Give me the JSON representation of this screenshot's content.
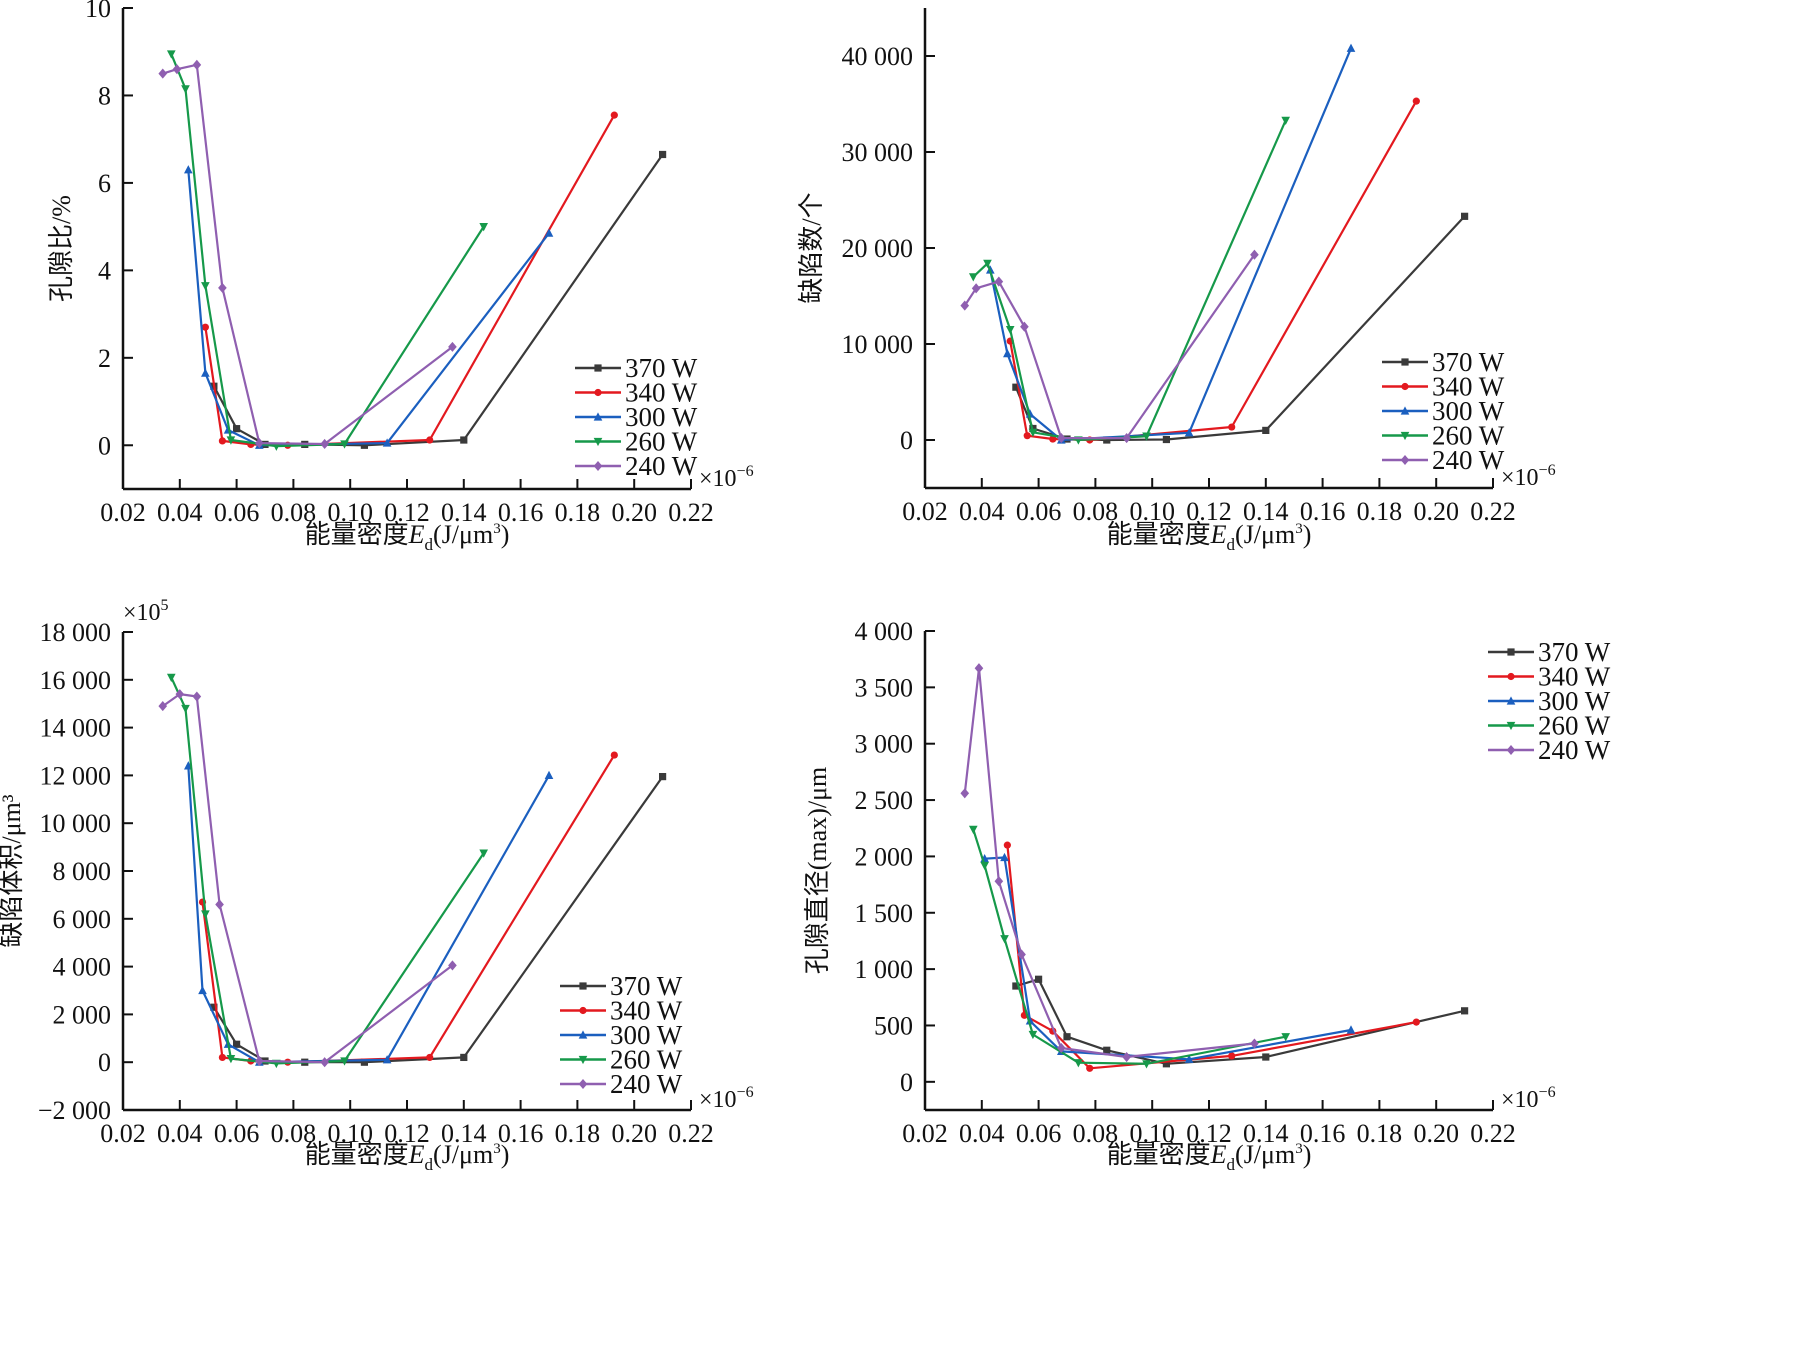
{
  "figure": {
    "series_styles": [
      {
        "name": "370 W",
        "color": "#3a3a3a",
        "marker": "square"
      },
      {
        "name": "340 W",
        "color": "#e3191f",
        "marker": "circle"
      },
      {
        "name": "300 W",
        "color": "#1b5fbf",
        "marker": "triangle-up"
      },
      {
        "name": "260 W",
        "color": "#16994a",
        "marker": "triangle-down"
      },
      {
        "name": "240 W",
        "color": "#8f5fb0",
        "marker": "diamond"
      }
    ]
  },
  "chart_data": [
    {
      "id": "void-ratio",
      "type": "line",
      "title": "",
      "xlabel": "能量密度E_d(J/μm³)",
      "xlabel_parts": {
        "main": "能量密度",
        "var": "E",
        "sub": "d",
        "unit": "(J/μm",
        "sup": "3",
        "close": ")"
      },
      "ylabel": "孔隙比/%",
      "x_multiplier": "×10⁻⁶",
      "x_multiplier_parts": {
        "base": "×10",
        "exp": "−6"
      },
      "y_multiplier": "",
      "xlim": [
        0.02,
        0.22
      ],
      "ylim": [
        -1,
        10
      ],
      "xticks": [
        0.02,
        0.04,
        0.06,
        0.08,
        0.1,
        0.12,
        0.14,
        0.16,
        0.18,
        0.2,
        0.22
      ],
      "xtick_labels": [
        "0.02",
        "0.04",
        "0.06",
        "0.08",
        "0.10",
        "0.12",
        "0.14",
        "0.16",
        "0.18",
        "0.20",
        "0.22"
      ],
      "yticks": [
        0,
        2,
        4,
        6,
        8,
        10
      ],
      "ytick_labels": [
        "0",
        "2",
        "4",
        "6",
        "8",
        "10"
      ],
      "grid": false,
      "legend_position": "bottom-right",
      "series": [
        {
          "name": "370 W",
          "x": [
            0.052,
            0.06,
            0.07,
            0.084,
            0.105,
            0.14,
            0.21
          ],
          "y": [
            1.35,
            0.38,
            0.02,
            0.02,
            0.0,
            0.12,
            6.65
          ]
        },
        {
          "name": "340 W",
          "x": [
            0.049,
            0.055,
            0.065,
            0.078,
            0.128,
            0.193
          ],
          "y": [
            2.7,
            0.1,
            0.02,
            0.0,
            0.12,
            7.55
          ]
        },
        {
          "name": "300 W",
          "x": [
            0.043,
            0.049,
            0.057,
            0.068,
            0.113,
            0.17
          ],
          "y": [
            6.3,
            1.65,
            0.35,
            0.0,
            0.05,
            4.85
          ]
        },
        {
          "name": "260 W",
          "x": [
            0.037,
            0.042,
            0.049,
            0.058,
            0.074,
            0.098,
            0.147
          ],
          "y": [
            8.95,
            8.15,
            3.65,
            0.12,
            -0.02,
            0.03,
            5.0
          ]
        },
        {
          "name": "240 W",
          "x": [
            0.034,
            0.039,
            0.046,
            0.055,
            0.068,
            0.091,
            0.136
          ],
          "y": [
            8.5,
            8.6,
            8.7,
            3.6,
            0.05,
            0.03,
            2.25
          ]
        }
      ]
    },
    {
      "id": "defect-count",
      "type": "line",
      "title": "",
      "xlabel": "能量密度E_d(J/μm³)",
      "xlabel_parts": {
        "main": "能量密度",
        "var": "E",
        "sub": "d",
        "unit": "(J/μm",
        "sup": "3",
        "close": ")"
      },
      "ylabel": "缺陷数/个",
      "x_multiplier": "×10⁻⁶",
      "x_multiplier_parts": {
        "base": "×10",
        "exp": "−6"
      },
      "y_multiplier": "",
      "xlim": [
        0.02,
        0.22
      ],
      "ylim": [
        -5000,
        45000
      ],
      "xticks": [
        0.02,
        0.04,
        0.06,
        0.08,
        0.1,
        0.12,
        0.14,
        0.16,
        0.18,
        0.2,
        0.22
      ],
      "xtick_labels": [
        "0.02",
        "0.04",
        "0.06",
        "0.08",
        "0.10",
        "0.12",
        "0.14",
        "0.16",
        "0.18",
        "0.20",
        "0.22"
      ],
      "yticks": [
        0,
        10000,
        20000,
        30000,
        40000
      ],
      "ytick_labels": [
        "0",
        "10 000",
        "20 000",
        "30 000",
        "40 000"
      ],
      "grid": false,
      "legend_position": "bottom-right",
      "series": [
        {
          "name": "370 W",
          "x": [
            0.052,
            0.058,
            0.07,
            0.084,
            0.105,
            0.14,
            0.21
          ],
          "y": [
            5500,
            1200,
            100,
            0,
            50,
            1000,
            23300
          ]
        },
        {
          "name": "340 W",
          "x": [
            0.05,
            0.056,
            0.065,
            0.078,
            0.128,
            0.193
          ],
          "y": [
            10300,
            450,
            100,
            0,
            1350,
            35300
          ]
        },
        {
          "name": "300 W",
          "x": [
            0.043,
            0.049,
            0.057,
            0.068,
            0.113,
            0.17
          ],
          "y": [
            17700,
            9000,
            2700,
            0,
            750,
            40800
          ]
        },
        {
          "name": "260 W",
          "x": [
            0.037,
            0.042,
            0.05,
            0.058,
            0.074,
            0.098,
            0.147
          ],
          "y": [
            17000,
            18400,
            11500,
            800,
            0,
            400,
            33300
          ]
        },
        {
          "name": "240 W",
          "x": [
            0.034,
            0.038,
            0.046,
            0.055,
            0.068,
            0.091,
            0.136
          ],
          "y": [
            14000,
            15800,
            16500,
            11800,
            200,
            200,
            19300
          ]
        }
      ]
    },
    {
      "id": "defect-volume",
      "type": "line",
      "title": "",
      "xlabel": "能量密度E_d(J/μm³)",
      "xlabel_parts": {
        "main": "能量密度",
        "var": "E",
        "sub": "d",
        "unit": "(J/μm",
        "sup": "3",
        "close": ")"
      },
      "ylabel": "缺陷体积/μm³",
      "x_multiplier": "×10⁻⁶",
      "x_multiplier_parts": {
        "base": "×10",
        "exp": "−6"
      },
      "y_multiplier": "×10⁵",
      "y_multiplier_parts": {
        "base": "×10",
        "exp": "5"
      },
      "xlim": [
        0.02,
        0.22
      ],
      "ylim": [
        -2000,
        18000
      ],
      "xticks": [
        0.02,
        0.04,
        0.06,
        0.08,
        0.1,
        0.12,
        0.14,
        0.16,
        0.18,
        0.2,
        0.22
      ],
      "xtick_labels": [
        "0.02",
        "0.04",
        "0.06",
        "0.08",
        "0.10",
        "0.12",
        "0.14",
        "0.16",
        "0.18",
        "0.20",
        "0.22"
      ],
      "yticks": [
        -2000,
        0,
        2000,
        4000,
        6000,
        8000,
        10000,
        12000,
        14000,
        16000,
        18000
      ],
      "ytick_labels": [
        "−2 000",
        "0",
        "2 000",
        "4 000",
        "6 000",
        "8 000",
        "10 000",
        "12 000",
        "14 000",
        "16 000",
        "18 000"
      ],
      "grid": false,
      "legend_position": "bottom-right",
      "series": [
        {
          "name": "370 W",
          "x": [
            0.052,
            0.06,
            0.07,
            0.084,
            0.105,
            0.14,
            0.21
          ],
          "y": [
            2300,
            750,
            50,
            0,
            0,
            200,
            11950
          ]
        },
        {
          "name": "340 W",
          "x": [
            0.048,
            0.055,
            0.065,
            0.078,
            0.128,
            0.193
          ],
          "y": [
            6700,
            200,
            50,
            0,
            200,
            12850
          ]
        },
        {
          "name": "300 W",
          "x": [
            0.043,
            0.048,
            0.057,
            0.068,
            0.113,
            0.17
          ],
          "y": [
            12400,
            3000,
            750,
            0,
            100,
            12000
          ]
        },
        {
          "name": "260 W",
          "x": [
            0.037,
            0.042,
            0.049,
            0.058,
            0.074,
            0.098,
            0.147
          ],
          "y": [
            16100,
            14800,
            6200,
            150,
            -50,
            50,
            8750
          ]
        },
        {
          "name": "240 W",
          "x": [
            0.034,
            0.04,
            0.046,
            0.054,
            0.068,
            0.091,
            0.136
          ],
          "y": [
            14900,
            15400,
            15300,
            6600,
            50,
            0,
            4050
          ]
        }
      ]
    },
    {
      "id": "max-pore-diameter",
      "type": "line",
      "title": "",
      "xlabel": "能量密度E_d(J/μm³)",
      "xlabel_parts": {
        "main": "能量密度",
        "var": "E",
        "sub": "d",
        "unit": "(J/μm",
        "sup": "3",
        "close": ")"
      },
      "ylabel": "孔隙直径(max)/μm",
      "x_multiplier": "×10⁻⁶",
      "x_multiplier_parts": {
        "base": "×10",
        "exp": "−6"
      },
      "y_multiplier": "",
      "xlim": [
        0.02,
        0.22
      ],
      "ylim": [
        -250,
        4000
      ],
      "xticks": [
        0.02,
        0.04,
        0.06,
        0.08,
        0.1,
        0.12,
        0.14,
        0.16,
        0.18,
        0.2,
        0.22
      ],
      "xtick_labels": [
        "0.02",
        "0.04",
        "0.06",
        "0.08",
        "0.10",
        "0.12",
        "0.14",
        "0.16",
        "0.18",
        "0.20",
        "0.22"
      ],
      "yticks": [
        0,
        500,
        1000,
        1500,
        2000,
        2500,
        3000,
        3500,
        4000
      ],
      "ytick_labels": [
        "0",
        "500",
        "1 000",
        "1 500",
        "2 000",
        "2 500",
        "3 000",
        "3 500",
        "4 000"
      ],
      "grid": false,
      "legend_position": "top-right",
      "series": [
        {
          "name": "370 W",
          "x": [
            0.052,
            0.06,
            0.07,
            0.084,
            0.105,
            0.14,
            0.21
          ],
          "y": [
            850,
            910,
            400,
            280,
            160,
            220,
            630
          ]
        },
        {
          "name": "340 W",
          "x": [
            0.049,
            0.055,
            0.065,
            0.078,
            0.128,
            0.193
          ],
          "y": [
            2100,
            590,
            450,
            120,
            230,
            530
          ]
        },
        {
          "name": "300 W",
          "x": [
            0.041,
            0.048,
            0.057,
            0.068,
            0.113,
            0.17
          ],
          "y": [
            1980,
            1990,
            540,
            270,
            200,
            460
          ]
        },
        {
          "name": "260 W",
          "x": [
            0.037,
            0.041,
            0.048,
            0.058,
            0.074,
            0.098,
            0.147
          ],
          "y": [
            2240,
            1920,
            1270,
            420,
            170,
            160,
            400
          ]
        },
        {
          "name": "240 W",
          "x": [
            0.034,
            0.039,
            0.046,
            0.054,
            0.068,
            0.091,
            0.136
          ],
          "y": [
            2560,
            3670,
            1780,
            1130,
            300,
            220,
            340
          ]
        }
      ]
    }
  ]
}
